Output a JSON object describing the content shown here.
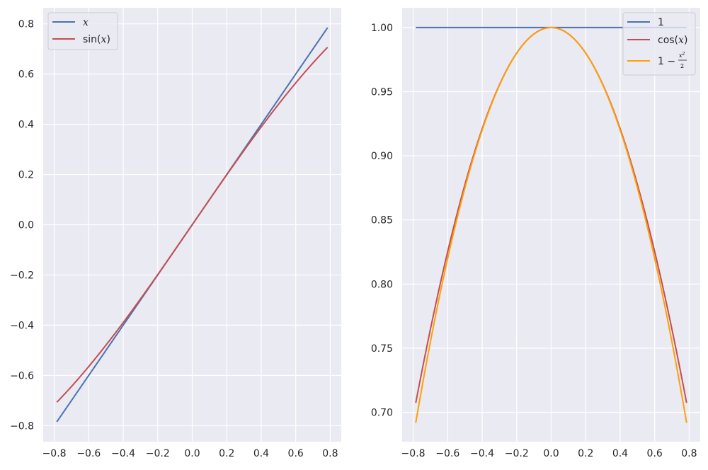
{
  "chart_data": [
    {
      "type": "line",
      "xlim": [
        -0.864,
        0.864
      ],
      "ylim": [
        -0.864,
        0.864
      ],
      "xticks": [
        -0.8,
        -0.6,
        -0.4,
        -0.2,
        0.0,
        0.2,
        0.4,
        0.6,
        0.8
      ],
      "xtick_labels": [
        "−0.8",
        "−0.6",
        "−0.4",
        "−0.2",
        "0.0",
        "0.2",
        "0.4",
        "0.6",
        "0.8"
      ],
      "yticks": [
        -0.8,
        -0.6,
        -0.4,
        -0.2,
        0.0,
        0.2,
        0.4,
        0.6,
        0.8
      ],
      "ytick_labels": [
        "−0.8",
        "−0.6",
        "−0.4",
        "−0.2",
        "0.0",
        "0.2",
        "0.4",
        "0.6",
        "0.8"
      ],
      "grid": true,
      "legend_position": "top-left",
      "x_domain": [
        -0.785,
        0.785
      ],
      "series": [
        {
          "name": "x",
          "function": "x",
          "color": "#4c72b0"
        },
        {
          "name": "sin(x)",
          "function": "sin(x)",
          "color": "#c44e52"
        }
      ],
      "sample_points": {
        "x": [
          -0.785,
          -0.6,
          -0.4,
          -0.2,
          0.0,
          0.2,
          0.4,
          0.6,
          0.785
        ],
        "x_vals": [
          -0.785,
          -0.6,
          -0.4,
          -0.2,
          0.0,
          0.2,
          0.4,
          0.6,
          0.785
        ],
        "sin_vals": [
          -0.707,
          -0.565,
          -0.389,
          -0.199,
          0.0,
          0.199,
          0.389,
          0.565,
          0.707
        ]
      }
    },
    {
      "type": "line",
      "xlim": [
        -0.864,
        0.864
      ],
      "ylim": [
        0.6771,
        1.0154
      ],
      "xticks": [
        -0.8,
        -0.6,
        -0.4,
        -0.2,
        0.0,
        0.2,
        0.4,
        0.6,
        0.8
      ],
      "xtick_labels": [
        "−0.8",
        "−0.6",
        "−0.4",
        "−0.2",
        "0.0",
        "0.2",
        "0.4",
        "0.6",
        "0.8"
      ],
      "yticks": [
        0.7,
        0.75,
        0.8,
        0.85,
        0.9,
        0.95,
        1.0
      ],
      "ytick_labels": [
        "0.70",
        "0.75",
        "0.80",
        "0.85",
        "0.90",
        "0.95",
        "1.00"
      ],
      "grid": true,
      "legend_position": "top-right",
      "x_domain": [
        -0.785,
        0.785
      ],
      "series": [
        {
          "name": "1",
          "function": "1",
          "color": "#4c72b0"
        },
        {
          "name": "cos(x)",
          "function": "cos(x)",
          "color": "#c44e52"
        },
        {
          "name": "1 - x²/2",
          "function": "1 - x^2/2",
          "color": "#ff9f0a"
        }
      ],
      "sample_points": {
        "x": [
          -0.785,
          -0.6,
          -0.4,
          -0.2,
          0.0,
          0.2,
          0.4,
          0.6,
          0.785
        ],
        "one_vals": [
          1,
          1,
          1,
          1,
          1,
          1,
          1,
          1,
          1
        ],
        "cos_vals": [
          0.707,
          0.825,
          0.921,
          0.98,
          1.0,
          0.98,
          0.921,
          0.825,
          0.707
        ],
        "taylor_vals": [
          0.692,
          0.82,
          0.92,
          0.98,
          1.0,
          0.98,
          0.92,
          0.82,
          0.692
        ]
      }
    }
  ],
  "legends": {
    "left": {
      "item0": "x",
      "item1_pre": "sin(",
      "item1_var": "x",
      "item1_post": ")"
    },
    "right": {
      "item0": "1",
      "item1_pre": "cos(",
      "item1_var": "x",
      "item1_post": ")",
      "item2_pre": "1 −",
      "item2_num_var": "x",
      "item2_num_exp": "2",
      "item2_den": "2"
    }
  }
}
